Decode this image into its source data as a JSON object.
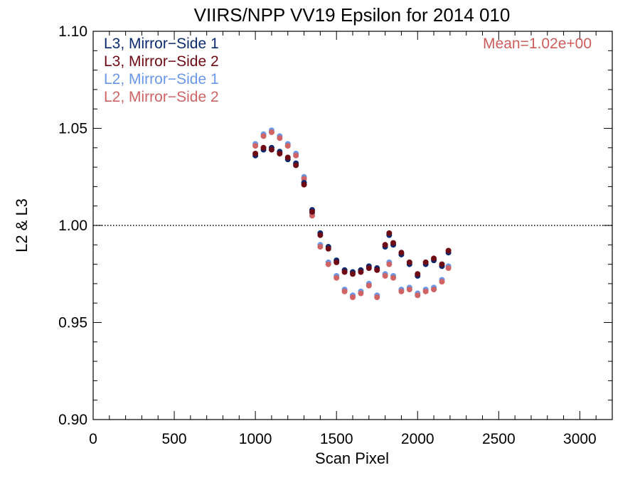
{
  "chart_data": {
    "type": "scatter",
    "title": "VIIRS/NPP VV19 Epsilon for 2014 010",
    "xlabel": "Scan Pixel",
    "ylabel": "L2 & L3",
    "xlim": [
      0,
      3200
    ],
    "ylim": [
      0.9,
      1.1
    ],
    "xticks": [
      0,
      500,
      1000,
      1500,
      2000,
      2500,
      3000
    ],
    "xtick_labels": [
      "0",
      "500",
      "1000",
      "1500",
      "2000",
      "2500",
      "3000"
    ],
    "yticks": [
      0.9,
      0.95,
      1.0,
      1.05,
      1.1
    ],
    "ytick_labels": [
      "0.90",
      "0.95",
      "1.00",
      "1.05",
      "1.10"
    ],
    "reference_line": {
      "y": 1.0,
      "style": "dotted"
    },
    "annotation": "Mean=1.02e+00",
    "annotation_color": "#cd5c5c",
    "legend_position": "top-left",
    "series": [
      {
        "name": "L3, Mirror−Side 1",
        "color": "#0b2a6f",
        "x": [
          1000,
          1050,
          1100,
          1150,
          1200,
          1250,
          1300,
          1350,
          1400,
          1450,
          1500,
          1550,
          1600,
          1650,
          1700,
          1750,
          1800,
          1825,
          1850,
          1900,
          1950,
          2000,
          2050,
          2100,
          2150,
          2190
        ],
        "y": [
          1.036,
          1.039,
          1.04,
          1.038,
          1.034,
          1.032,
          1.022,
          1.008,
          0.996,
          0.989,
          0.982,
          0.977,
          0.976,
          0.977,
          0.979,
          0.978,
          0.989,
          0.995,
          0.99,
          0.985,
          0.98,
          0.974,
          0.98,
          0.982,
          0.979,
          0.986
        ]
      },
      {
        "name": "L3, Mirror−Side 2",
        "color": "#6e0a14",
        "x": [
          1000,
          1050,
          1100,
          1150,
          1200,
          1250,
          1300,
          1350,
          1400,
          1450,
          1500,
          1550,
          1600,
          1650,
          1700,
          1750,
          1800,
          1825,
          1850,
          1900,
          1950,
          2000,
          2050,
          2100,
          2150,
          2190
        ],
        "y": [
          1.037,
          1.04,
          1.039,
          1.037,
          1.035,
          1.031,
          1.021,
          1.007,
          0.995,
          0.988,
          0.981,
          0.976,
          0.975,
          0.976,
          0.978,
          0.977,
          0.99,
          0.996,
          0.991,
          0.986,
          0.981,
          0.975,
          0.981,
          0.983,
          0.98,
          0.987
        ]
      },
      {
        "name": "L2, Mirror−Side 1",
        "color": "#6a97e8",
        "x": [
          1000,
          1050,
          1100,
          1150,
          1200,
          1250,
          1300,
          1350,
          1400,
          1450,
          1500,
          1550,
          1600,
          1650,
          1700,
          1750,
          1800,
          1825,
          1850,
          1900,
          1950,
          2000,
          2050,
          2100,
          2150,
          2190
        ],
        "y": [
          1.042,
          1.047,
          1.049,
          1.046,
          1.042,
          1.037,
          1.025,
          1.006,
          0.99,
          0.981,
          0.974,
          0.967,
          0.964,
          0.966,
          0.97,
          0.964,
          0.975,
          0.981,
          0.974,
          0.967,
          0.968,
          0.965,
          0.967,
          0.968,
          0.972,
          0.979
        ]
      },
      {
        "name": "L2, Mirror−Side 2",
        "color": "#d06464",
        "x": [
          1000,
          1050,
          1100,
          1150,
          1200,
          1250,
          1300,
          1350,
          1400,
          1450,
          1500,
          1550,
          1600,
          1650,
          1700,
          1750,
          1800,
          1825,
          1850,
          1900,
          1950,
          2000,
          2050,
          2100,
          2150,
          2190
        ],
        "y": [
          1.041,
          1.046,
          1.048,
          1.045,
          1.041,
          1.036,
          1.024,
          1.005,
          0.989,
          0.98,
          0.973,
          0.966,
          0.963,
          0.965,
          0.969,
          0.963,
          0.974,
          0.98,
          0.973,
          0.966,
          0.967,
          0.964,
          0.966,
          0.967,
          0.971,
          0.978
        ]
      }
    ]
  }
}
